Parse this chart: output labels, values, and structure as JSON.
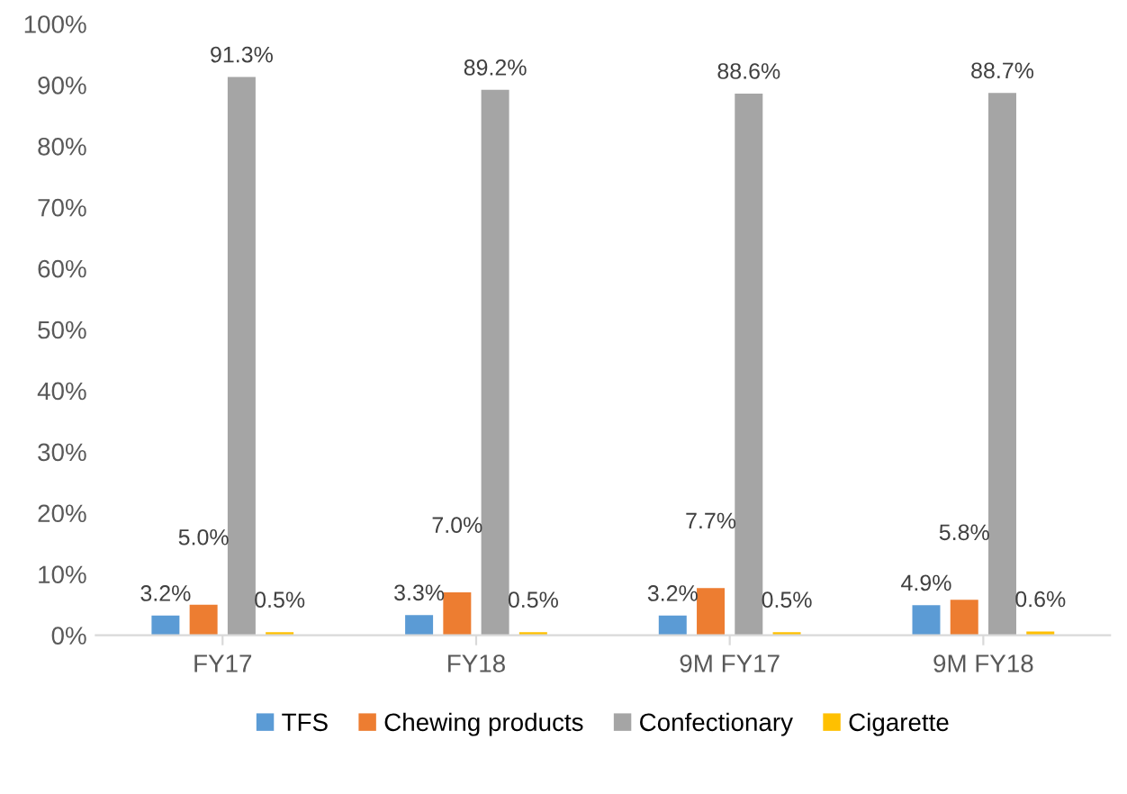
{
  "chart_data": {
    "type": "bar",
    "categories": [
      "FY17",
      "FY18",
      "9M FY17",
      "9M FY18"
    ],
    "series": [
      {
        "name": "TFS",
        "color": "#5b9bd5",
        "values": [
          3.2,
          3.3,
          3.2,
          4.9
        ],
        "value_labels": [
          "3.2%",
          "3.3%",
          "3.2%",
          "4.9%"
        ]
      },
      {
        "name": "Chewing products",
        "color": "#ed7d31",
        "values": [
          5.0,
          7.0,
          7.7,
          5.8
        ],
        "value_labels": [
          "5.0%",
          "7.0%",
          "7.7%",
          "5.8%"
        ]
      },
      {
        "name": "Confectionary",
        "color": "#a5a5a5",
        "values": [
          91.3,
          89.2,
          88.6,
          88.7
        ],
        "value_labels": [
          "91.3%",
          "89.2%",
          "88.6%",
          "88.7%"
        ]
      },
      {
        "name": "Cigarette",
        "color": "#ffc000",
        "values": [
          0.5,
          0.5,
          0.5,
          0.6
        ],
        "value_labels": [
          "0.5%",
          "0.5%",
          "0.5%",
          "0.6%"
        ]
      }
    ],
    "ylim": [
      0,
      100
    ],
    "yticks": [
      {
        "value": 0,
        "label": "0%"
      },
      {
        "value": 10,
        "label": "10%"
      },
      {
        "value": 20,
        "label": "20%"
      },
      {
        "value": 30,
        "label": "30%"
      },
      {
        "value": 40,
        "label": "40%"
      },
      {
        "value": 50,
        "label": "50%"
      },
      {
        "value": 60,
        "label": "60%"
      },
      {
        "value": 70,
        "label": "70%"
      },
      {
        "value": 80,
        "label": "80%"
      },
      {
        "value": 90,
        "label": "90%"
      },
      {
        "value": 100,
        "label": "100%"
      }
    ],
    "grid": false,
    "legend": "bottom"
  }
}
